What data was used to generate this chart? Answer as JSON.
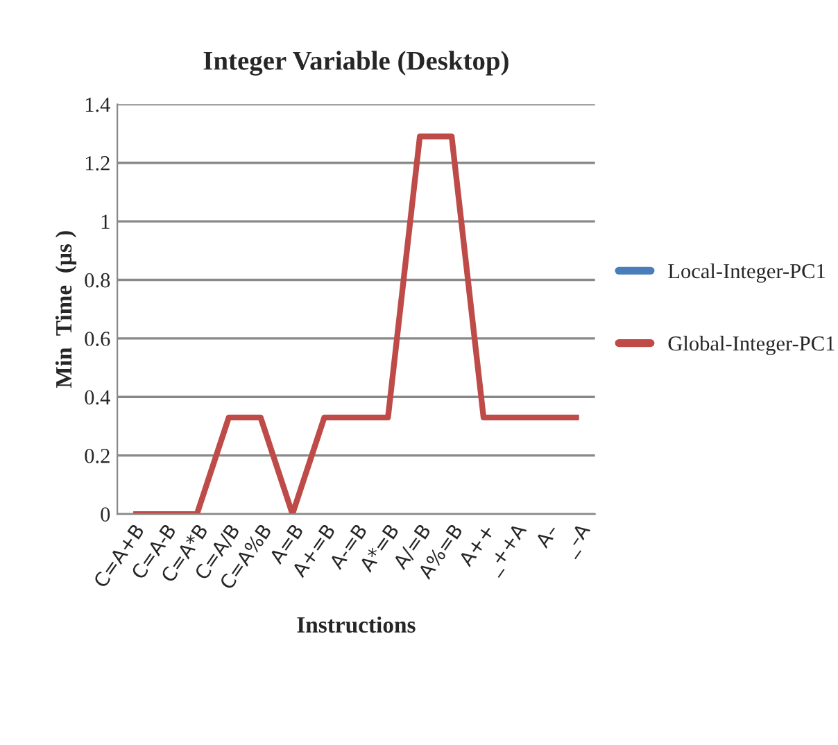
{
  "chart_data": {
    "type": "line",
    "title": "Integer Variable (Desktop)",
    "xlabel": "Instructions",
    "ylabel": "Min  Time  (μs )",
    "categories": [
      "C=A+B",
      "C=A-B",
      "C=A*B",
      "C=A/B",
      "C=A%B",
      "A=B",
      "A+=B",
      "A-=B",
      "A*=B",
      "A/=B",
      "A%=B",
      "A++",
      "_++A",
      "A–",
      "_–A"
    ],
    "series": [
      {
        "name": "Local-Integer-PC1",
        "color": "#4a7ebb",
        "values": [
          null,
          null,
          null,
          null,
          null,
          null,
          null,
          null,
          null,
          null,
          null,
          null,
          null,
          null,
          null
        ]
      },
      {
        "name": "Global-Integer-PC1",
        "color": "#be4b48",
        "values": [
          0,
          0,
          0,
          0.33,
          0.33,
          0,
          0.33,
          0.33,
          0.33,
          1.29,
          1.29,
          0.33,
          0.33,
          0.33,
          0.33
        ]
      }
    ],
    "ylim": [
      0,
      1.4
    ],
    "yticks": [
      0,
      0.2,
      0.4,
      0.6,
      0.8,
      1,
      1.2,
      1.4
    ],
    "grid": "y",
    "legend": "right"
  }
}
